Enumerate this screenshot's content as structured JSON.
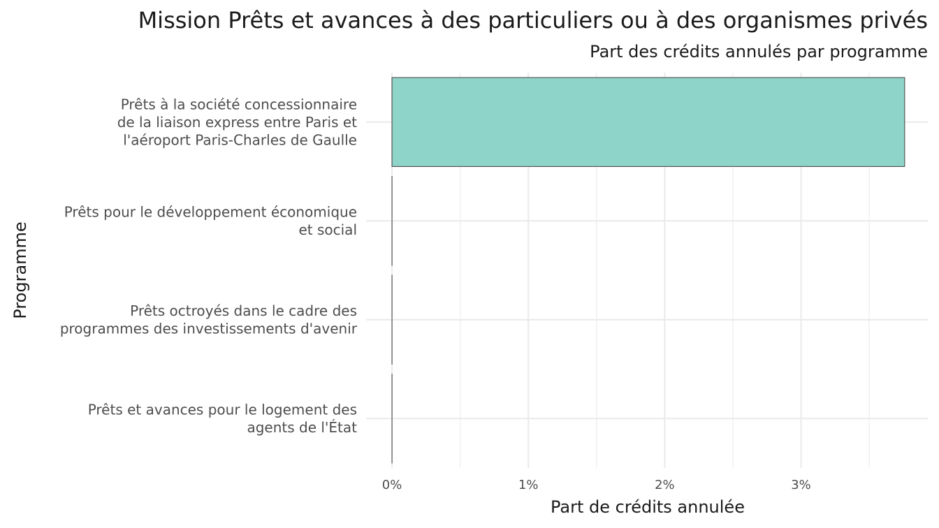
{
  "chart_data": {
    "type": "bar",
    "orientation": "horizontal",
    "title": "Mission Prêts et avances à des particuliers ou à des organismes privés",
    "subtitle": "Part des crédits annulés par programme",
    "xlabel": "Part de crédits annulée",
    "ylabel": "Programme",
    "categories": [
      [
        "Prêts à la société concessionnaire",
        "de la liaison express entre Paris et",
        "l'aéroport Paris-Charles de Gaulle"
      ],
      [
        "Prêts pour le développement économique",
        "et social"
      ],
      [
        "Prêts octroyés dans le cadre des",
        "programmes des investissements d'avenir"
      ],
      [
        "Prêts et avances pour le logement des",
        "agents de l'État"
      ]
    ],
    "values": [
      3.76,
      0,
      0,
      0
    ],
    "xlim": [
      -0.19,
      3.93
    ],
    "x_ticks": [
      0,
      1,
      2,
      3
    ],
    "x_tick_labels": [
      "0%",
      "1%",
      "2%",
      "3%"
    ],
    "bar_color": "#8ed4c8",
    "bar_outline": "#4d4d4d",
    "grid": true,
    "legend": "none"
  }
}
